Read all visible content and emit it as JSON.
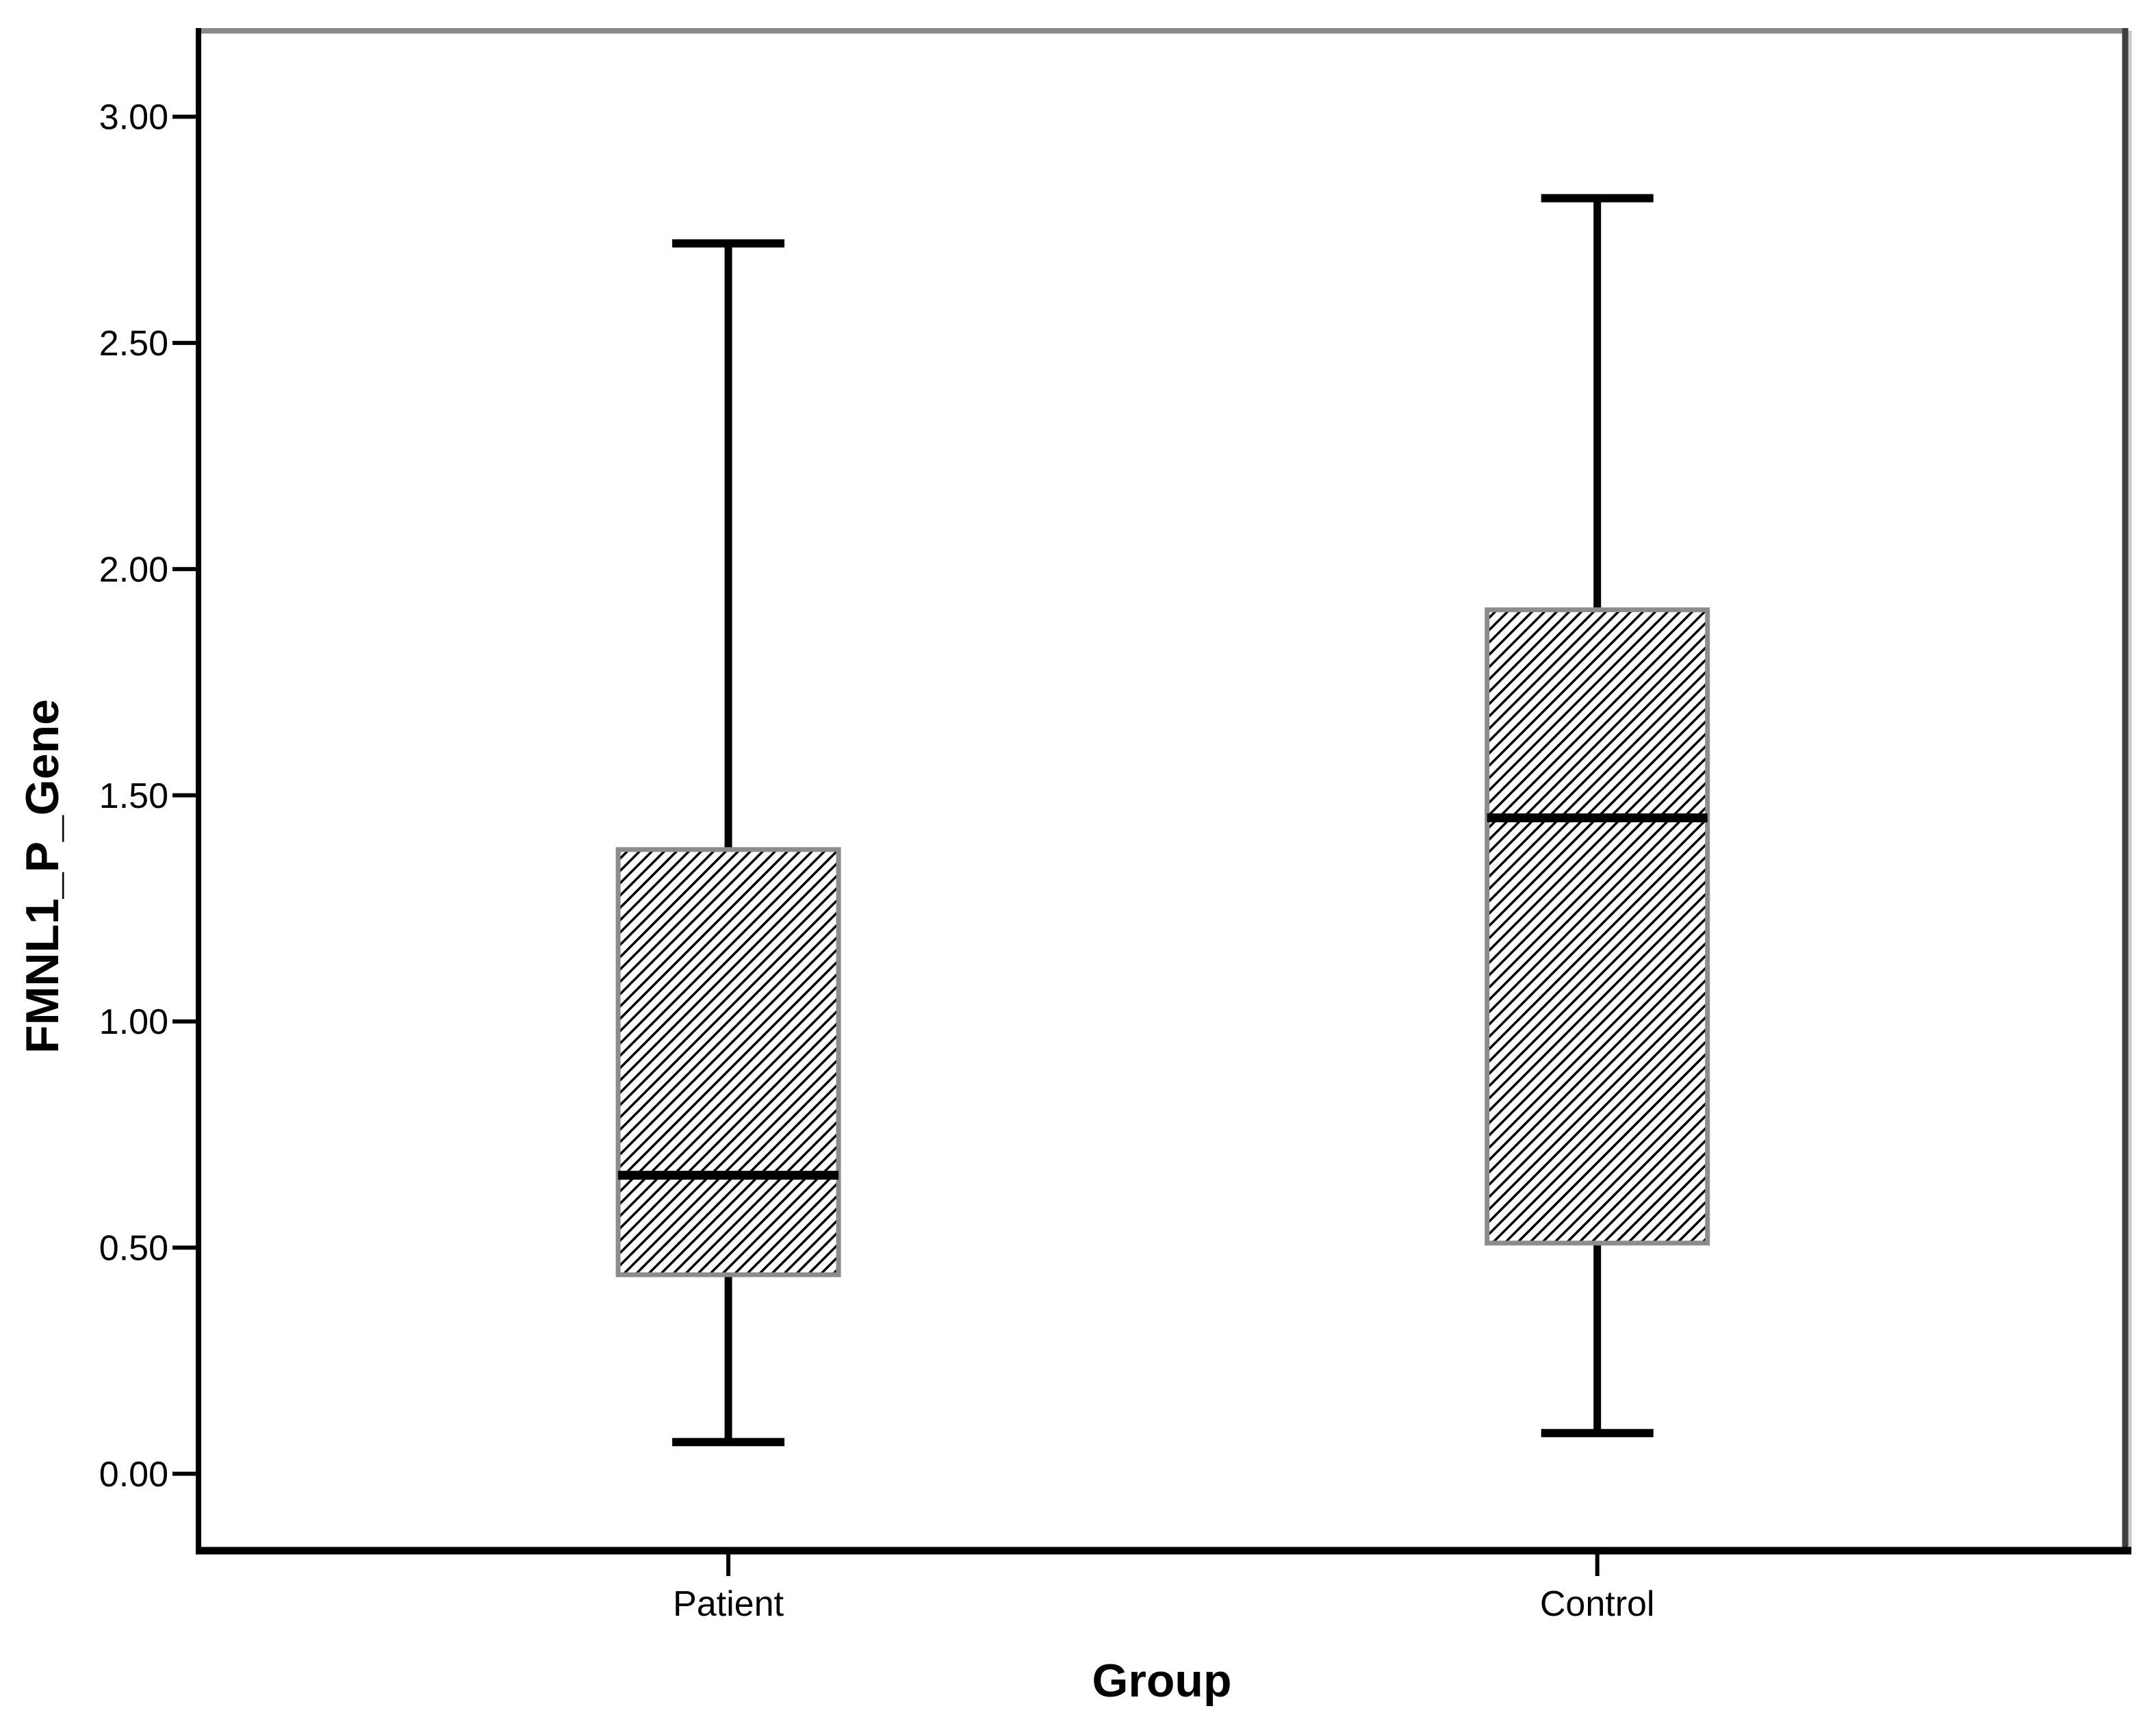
{
  "chart_data": {
    "type": "box",
    "title": "",
    "xlabel": "Group",
    "ylabel": "FMNL1_P_Gene",
    "categories": [
      "Patient",
      "Control"
    ],
    "series": [
      {
        "name": "Patient",
        "min": 0.07,
        "q1": 0.44,
        "median": 0.66,
        "q3": 1.38,
        "max": 2.72
      },
      {
        "name": "Control",
        "min": 0.09,
        "q1": 0.51,
        "median": 1.45,
        "q3": 1.91,
        "max": 2.82
      }
    ],
    "ylim": [
      -0.17,
      3.19
    ],
    "ytick_values": [
      0,
      0.5,
      1,
      1.5,
      2,
      2.5,
      3
    ],
    "yticks": [
      "0.00",
      "0.50",
      "1.00",
      "1.50",
      "2.00",
      "2.50",
      "3.00"
    ],
    "grid": false,
    "legend": "none",
    "box_style": "diagonal-hatch",
    "colors": {
      "line": "#000000",
      "median": "#000000",
      "box_border": "#8c8c8c",
      "hatch": "#000000",
      "box_fill": "#ffffff",
      "frame_top": "#8a8a8a",
      "frame_right": "#3f3f3f",
      "frame_right_shadow": "#c9c9c9",
      "text": "#000000",
      "background": "#ffffff"
    }
  }
}
